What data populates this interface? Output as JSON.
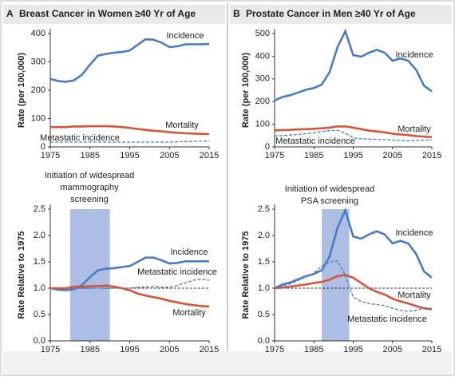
{
  "chart_data": [
    {
      "type": "line",
      "panel": "A",
      "title": "Breast Cancer in Women ≥40 Yr of Age",
      "ylabel": "Rate (per 100,000)",
      "x": [
        1975,
        1977,
        1979,
        1981,
        1983,
        1985,
        1987,
        1989,
        1991,
        1993,
        1995,
        1997,
        1999,
        2001,
        2003,
        2005,
        2007,
        2009,
        2011,
        2013,
        2015
      ],
      "xlim": [
        1975,
        2015
      ],
      "xticks": [
        1975,
        1985,
        1995,
        2005,
        2015
      ],
      "ylim": [
        0,
        400
      ],
      "yticks": [
        0,
        100,
        200,
        300,
        400
      ],
      "series": [
        {
          "name": "Incidence",
          "color": "#4a7cc4",
          "style": "solid",
          "values": [
            240,
            232,
            230,
            235,
            255,
            290,
            322,
            328,
            332,
            335,
            340,
            360,
            380,
            378,
            368,
            352,
            355,
            362,
            362,
            362,
            363
          ]
        },
        {
          "name": "Mortality",
          "color": "#d4553a",
          "style": "solid",
          "values": [
            70,
            70,
            70,
            72,
            72,
            73,
            73,
            73,
            72,
            70,
            67,
            63,
            60,
            57,
            55,
            52,
            50,
            48,
            47,
            46,
            45
          ]
        },
        {
          "name": "Metastatic incidence",
          "color": "#4a7cc4",
          "style": "dashed",
          "values": [
            17,
            17,
            17,
            17,
            17,
            17,
            17,
            17,
            17,
            17,
            17,
            17,
            17,
            17,
            17,
            17,
            18,
            19,
            20,
            20,
            20
          ]
        }
      ]
    },
    {
      "type": "line",
      "panel": "A",
      "ylabel": "Rate Relative to 1975",
      "annotation": [
        "Initiation of widespread",
        "mammography",
        "screening"
      ],
      "shade": [
        1980,
        1990
      ],
      "hline": 1.0,
      "x": [
        1975,
        1977,
        1979,
        1981,
        1983,
        1985,
        1987,
        1989,
        1991,
        1993,
        1995,
        1997,
        1999,
        2001,
        2003,
        2005,
        2007,
        2009,
        2011,
        2013,
        2015
      ],
      "xlim": [
        1975,
        2015
      ],
      "xticks": [
        1975,
        1985,
        1995,
        2005,
        2015
      ],
      "ylim": [
        0,
        2.5
      ],
      "yticks": [
        {
          "value": 0,
          "label": "0.0"
        },
        0.5,
        {
          "value": 1,
          "label": "1.0"
        },
        1.5,
        {
          "value": 2,
          "label": "2.0"
        },
        2.5
      ],
      "series": [
        {
          "name": "Incidence",
          "color": "#4a7cc4",
          "style": "solid",
          "values": [
            1.0,
            0.97,
            0.96,
            0.98,
            1.06,
            1.21,
            1.34,
            1.37,
            1.38,
            1.4,
            1.42,
            1.5,
            1.58,
            1.58,
            1.53,
            1.47,
            1.48,
            1.51,
            1.51,
            1.51,
            1.51
          ]
        },
        {
          "name": "Metastatic incidence",
          "color": "#4a7cc4",
          "style": "dashed",
          "values": [
            1.0,
            1.0,
            1.0,
            1.0,
            1.0,
            1.0,
            1.0,
            1.0,
            1.0,
            1.0,
            1.0,
            1.02,
            1.02,
            1.03,
            1.02,
            1.02,
            1.05,
            1.1,
            1.15,
            1.17,
            1.15
          ]
        },
        {
          "name": "Mortality",
          "color": "#d4553a",
          "style": "solid",
          "values": [
            1.0,
            1.0,
            1.0,
            1.03,
            1.03,
            1.04,
            1.04,
            1.05,
            1.03,
            1.0,
            0.96,
            0.9,
            0.86,
            0.83,
            0.8,
            0.76,
            0.73,
            0.7,
            0.68,
            0.66,
            0.65
          ]
        }
      ]
    },
    {
      "type": "line",
      "panel": "B",
      "title": "Prostate Cancer in Men ≥40 Yr of Age",
      "ylabel": "Rate (per 100,000)",
      "x": [
        1975,
        1977,
        1979,
        1981,
        1983,
        1985,
        1987,
        1989,
        1991,
        1993,
        1995,
        1997,
        1999,
        2001,
        2003,
        2005,
        2007,
        2009,
        2011,
        2013,
        2015
      ],
      "xlim": [
        1975,
        2015
      ],
      "xticks": [
        1975,
        1985,
        1995,
        2005,
        2015
      ],
      "ylim": [
        0,
        500
      ],
      "yticks": [
        0,
        100,
        200,
        300,
        400,
        500
      ],
      "series": [
        {
          "name": "Incidence",
          "color": "#4a7cc4",
          "style": "solid",
          "values": [
            205,
            220,
            228,
            240,
            252,
            260,
            275,
            330,
            440,
            510,
            405,
            398,
            415,
            428,
            415,
            380,
            390,
            380,
            340,
            270,
            245
          ]
        },
        {
          "name": "Mortality",
          "color": "#d4553a",
          "style": "solid",
          "values": [
            73,
            74,
            75,
            77,
            78,
            80,
            82,
            85,
            90,
            90,
            85,
            78,
            72,
            68,
            64,
            58,
            55,
            52,
            48,
            45,
            43
          ]
        },
        {
          "name": "Metastatic incidence",
          "color": "#4a7cc4",
          "style": "dashed",
          "values": [
            48,
            50,
            52,
            55,
            58,
            62,
            68,
            72,
            73,
            60,
            40,
            36,
            34,
            33,
            32,
            30,
            28,
            27,
            28,
            30,
            30
          ]
        }
      ]
    },
    {
      "type": "line",
      "panel": "B",
      "ylabel": "Rate Relative to 1975",
      "annotation": [
        "Initiation of widespread",
        "PSA screening"
      ],
      "shade": [
        1987,
        1994
      ],
      "hline": 1.0,
      "x": [
        1975,
        1977,
        1979,
        1981,
        1983,
        1985,
        1987,
        1989,
        1991,
        1993,
        1995,
        1997,
        1999,
        2001,
        2003,
        2005,
        2007,
        2009,
        2011,
        2013,
        2015
      ],
      "xlim": [
        1975,
        2015
      ],
      "xticks": [
        1975,
        1985,
        1995,
        2005,
        2015
      ],
      "ylim": [
        0,
        2.5
      ],
      "yticks": [
        {
          "value": 0,
          "label": "0.0"
        },
        0.5,
        {
          "value": 1,
          "label": "1.0"
        },
        1.5,
        {
          "value": 2,
          "label": "2.0"
        },
        2.5
      ],
      "series": [
        {
          "name": "Incidence",
          "color": "#4a7cc4",
          "style": "solid",
          "values": [
            1.0,
            1.07,
            1.11,
            1.17,
            1.23,
            1.27,
            1.34,
            1.6,
            2.15,
            2.48,
            1.98,
            1.94,
            2.02,
            2.08,
            2.02,
            1.85,
            1.9,
            1.85,
            1.65,
            1.32,
            1.2
          ]
        },
        {
          "name": "Mortality",
          "color": "#d4553a",
          "style": "solid",
          "values": [
            1.0,
            1.01,
            1.03,
            1.05,
            1.07,
            1.1,
            1.12,
            1.16,
            1.23,
            1.25,
            1.2,
            1.1,
            1.0,
            0.93,
            0.88,
            0.8,
            0.75,
            0.71,
            0.66,
            0.62,
            0.6
          ]
        },
        {
          "name": "Metastatic incidence",
          "color": "#4a7cc4",
          "style": "dashed",
          "values": [
            1.0,
            1.04,
            1.08,
            1.15,
            1.21,
            1.29,
            1.42,
            1.5,
            1.52,
            1.25,
            0.83,
            0.75,
            0.71,
            0.69,
            0.67,
            0.62,
            0.58,
            0.56,
            0.58,
            0.62,
            0.62
          ]
        }
      ]
    }
  ]
}
